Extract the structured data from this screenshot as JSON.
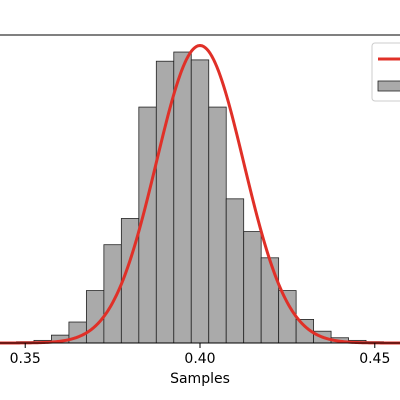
{
  "chart_data": {
    "type": "bar",
    "title": "",
    "xlabel": "Samples",
    "ylabel": "",
    "xlim": [
      0.3425,
      0.4575
    ],
    "ylim": [
      0,
      23.5
    ],
    "grid": false,
    "legend_placement": "top-right",
    "x_ticks": [
      {
        "value": 0.35,
        "label": "0.35"
      },
      {
        "value": 0.4,
        "label": "0.40"
      },
      {
        "value": 0.45,
        "label": "0.45"
      }
    ],
    "histogram": {
      "bin_edges": [
        0.3475,
        0.3525,
        0.3575,
        0.3625,
        0.3675,
        0.3725,
        0.3775,
        0.3825,
        0.3875,
        0.3925,
        0.3975,
        0.4025,
        0.4075,
        0.4125,
        0.4175,
        0.4225,
        0.4275,
        0.4325,
        0.4375,
        0.4425,
        0.4475,
        0.4525
      ],
      "counts": [
        0.1,
        0.2,
        0.6,
        1.6,
        4.0,
        7.5,
        9.5,
        18.0,
        21.5,
        22.2,
        21.6,
        18.0,
        11.0,
        8.5,
        6.5,
        4.0,
        1.8,
        0.9,
        0.4,
        0.2,
        0.1
      ],
      "color": "#aaaaaa"
    },
    "curve": {
      "type": "normal",
      "mean": 0.4,
      "std": 0.0125,
      "peak": 22.7,
      "color": "#e03028"
    }
  }
}
